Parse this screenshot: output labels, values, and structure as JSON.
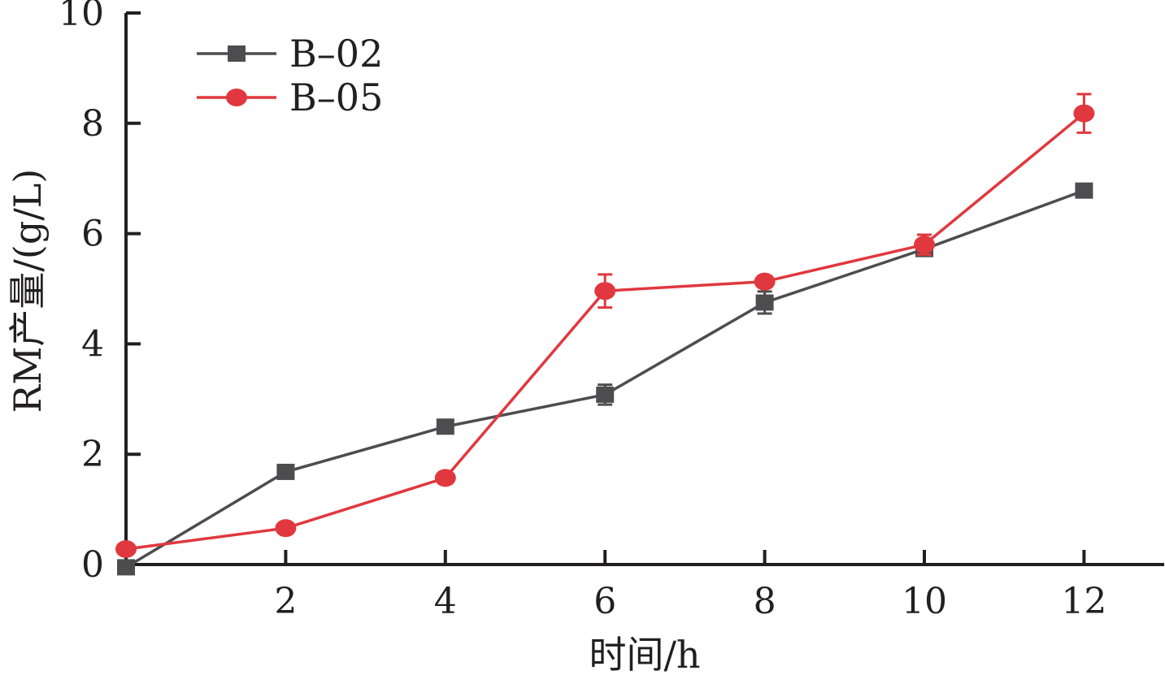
{
  "chart_data": {
    "type": "line",
    "title": "",
    "xlabel": "时间/h",
    "ylabel": "RM产量/(g/L)",
    "xlim": [
      0,
      13
    ],
    "ylim": [
      0,
      10
    ],
    "x_ticks": [
      "2",
      "4",
      "6",
      "8",
      "10",
      "12"
    ],
    "y_ticks": [
      "0",
      "2",
      "4",
      "6",
      "8",
      "10"
    ],
    "grid": false,
    "legend_position": "top-left",
    "series": [
      {
        "name": "B–02",
        "color": "#4d4d4f",
        "marker": "square",
        "x": [
          0,
          2,
          4,
          6,
          8,
          10,
          12
        ],
        "y": [
          -0.05,
          1.68,
          2.5,
          3.08,
          4.75,
          5.72,
          6.78
        ],
        "err": [
          0.04,
          0.06,
          0.06,
          0.18,
          0.2,
          0.08,
          0.06
        ]
      },
      {
        "name": "B–05",
        "color": "#e0383e",
        "marker": "circle",
        "x": [
          0,
          2,
          4,
          6,
          8,
          10,
          12
        ],
        "y": [
          0.28,
          0.66,
          1.57,
          4.96,
          5.13,
          5.8,
          8.18
        ],
        "err": [
          0.04,
          0.06,
          0.1,
          0.3,
          0.1,
          0.18,
          0.35
        ]
      }
    ]
  }
}
